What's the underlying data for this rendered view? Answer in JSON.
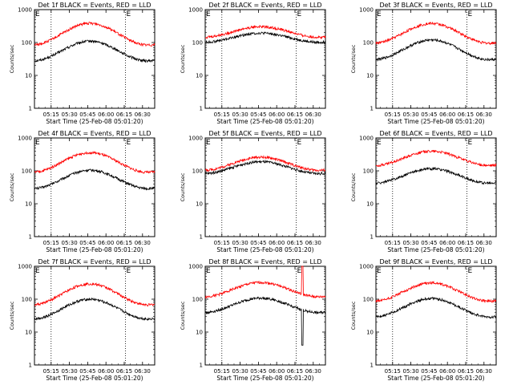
{
  "chart_data": [
    {
      "type": "line",
      "title": "Det 1f BLACK = Events, RED = LLD",
      "xlabel": "Start Time (25-Feb-08 05:01:20)",
      "ylabel": "Counts/sec",
      "yscale": "log",
      "ylim": [
        1,
        1000
      ],
      "ytick_labels": [
        "1",
        "10",
        "100",
        "1000"
      ],
      "xtick_labels": [
        "05:15",
        "05:30",
        "05:45",
        "06:00",
        "06:15",
        "06:30"
      ],
      "vlines": [
        "05:15",
        "06:16"
      ],
      "corner_marks": [
        "E",
        "E"
      ],
      "series": [
        {
          "color": "#000000",
          "base": 55,
          "swing": 0.3
        },
        {
          "color": "#ff0000",
          "base": 180,
          "swing": 0.33
        }
      ]
    },
    {
      "type": "line",
      "title": "Det 2f BLACK = Events, RED = LLD",
      "xlabel": "Start Time (25-Feb-08 05:01:20)",
      "ylabel": "Counts/sec",
      "yscale": "log",
      "ylim": [
        1,
        1000
      ],
      "ytick_labels": [
        "1",
        "10",
        "100",
        "1000"
      ],
      "xtick_labels": [
        "05:15",
        "05:30",
        "05:45",
        "06:00",
        "06:15",
        "06:30"
      ],
      "vlines": [
        "05:15",
        "06:16"
      ],
      "corner_marks": [
        "E",
        "E"
      ],
      "series": [
        {
          "color": "#000000",
          "base": 140,
          "swing": 0.14
        },
        {
          "color": "#ff0000",
          "base": 210,
          "swing": 0.16
        }
      ]
    },
    {
      "type": "line",
      "title": "Det 3f BLACK = Events, RED = LLD",
      "xlabel": "Start Time (25-Feb-08 05:01:20)",
      "ylabel": "Counts/sec",
      "yscale": "log",
      "ylim": [
        1,
        1000
      ],
      "ytick_labels": [
        "1",
        "10",
        "100",
        "1000"
      ],
      "xtick_labels": [
        "05:15",
        "05:30",
        "05:45",
        "06:00",
        "06:15",
        "06:30"
      ],
      "vlines": [
        "05:15",
        "06:16"
      ],
      "corner_marks": [
        "E",
        "E"
      ],
      "series": [
        {
          "color": "#000000",
          "base": 60,
          "swing": 0.3
        },
        {
          "color": "#ff0000",
          "base": 190,
          "swing": 0.3
        }
      ]
    },
    {
      "type": "line",
      "title": "Det 4f BLACK = Events, RED = LLD",
      "xlabel": "Start Time (25-Feb-08 05:01:20)",
      "ylabel": "Counts/sec",
      "yscale": "log",
      "ylim": [
        1,
        1000
      ],
      "ytick_labels": [
        "1",
        "10",
        "100",
        "1000"
      ],
      "xtick_labels": [
        "05:15",
        "05:30",
        "05:45",
        "06:00",
        "06:15",
        "06:30"
      ],
      "vlines": [
        "05:15",
        "06:16"
      ],
      "corner_marks": [
        "E",
        "E"
      ],
      "series": [
        {
          "color": "#000000",
          "base": 55,
          "swing": 0.28
        },
        {
          "color": "#ff0000",
          "base": 180,
          "swing": 0.3
        }
      ]
    },
    {
      "type": "line",
      "title": "Det 5f BLACK = Events, RED = LLD",
      "xlabel": "Start Time (25-Feb-08 05:01:20)",
      "ylabel": "Counts/sec",
      "yscale": "log",
      "ylim": [
        1,
        1000
      ],
      "ytick_labels": [
        "1",
        "10",
        "100",
        "1000"
      ],
      "xtick_labels": [
        "05:15",
        "05:30",
        "05:45",
        "06:00",
        "06:15",
        "06:30"
      ],
      "vlines": [
        "05:15",
        "06:16"
      ],
      "corner_marks": [
        "E",
        "E"
      ],
      "series": [
        {
          "color": "#000000",
          "base": 125,
          "swing": 0.18
        },
        {
          "color": "#ff0000",
          "base": 165,
          "swing": 0.2
        }
      ]
    },
    {
      "type": "line",
      "title": "Det 6f BLACK = Events, RED = LLD",
      "xlabel": "Start Time (25-Feb-08 05:01:20)",
      "ylabel": "Counts/sec",
      "yscale": "log",
      "ylim": [
        1,
        1000
      ],
      "ytick_labels": [
        "1",
        "10",
        "100",
        "1000"
      ],
      "xtick_labels": [
        "05:15",
        "05:30",
        "05:45",
        "06:00",
        "06:15",
        "06:30"
      ],
      "vlines": [
        "05:15",
        "06:16"
      ],
      "corner_marks": [
        "E",
        "E"
      ],
      "series": [
        {
          "color": "#000000",
          "base": 70,
          "swing": 0.22
        },
        {
          "color": "#ff0000",
          "base": 240,
          "swing": 0.22
        }
      ]
    },
    {
      "type": "line",
      "title": "Det 7f BLACK = Events, RED = LLD",
      "xlabel": "Start Time (25-Feb-08 05:01:20)",
      "ylabel": "Counts/sec",
      "yscale": "log",
      "ylim": [
        1,
        1000
      ],
      "ytick_labels": [
        "1",
        "10",
        "100",
        "1000"
      ],
      "xtick_labels": [
        "05:15",
        "05:30",
        "05:45",
        "06:00",
        "06:15",
        "06:30"
      ],
      "vlines": [
        "05:15",
        "06:16"
      ],
      "corner_marks": [
        "E",
        "E"
      ],
      "series": [
        {
          "color": "#000000",
          "base": 50,
          "swing": 0.3
        },
        {
          "color": "#ff0000",
          "base": 140,
          "swing": 0.32
        }
      ]
    },
    {
      "type": "line",
      "title": "Det 8f BLACK = Events, RED = LLD",
      "xlabel": "Start Time (25-Feb-08 05:01:20)",
      "ylabel": "Counts/sec",
      "yscale": "log",
      "ylim": [
        1,
        1000
      ],
      "ytick_labels": [
        "1",
        "10",
        "100",
        "1000"
      ],
      "xtick_labels": [
        "05:15",
        "05:30",
        "05:45",
        "06:00",
        "06:15",
        "06:30"
      ],
      "vlines": [
        "05:15",
        "06:16"
      ],
      "corner_marks": [
        "E",
        "E"
      ],
      "spike": {
        "black_min": 4,
        "red_max": 1000
      },
      "series": [
        {
          "color": "#000000",
          "base": 65,
          "swing": 0.22
        },
        {
          "color": "#ff0000",
          "base": 195,
          "swing": 0.22
        }
      ]
    },
    {
      "type": "line",
      "title": "Det 9f BLACK = Events, RED = LLD",
      "xlabel": "Start Time (25-Feb-08 05:01:20)",
      "ylabel": "Counts/sec",
      "yscale": "log",
      "ylim": [
        1,
        1000
      ],
      "ytick_labels": [
        "1",
        "10",
        "100",
        "1000"
      ],
      "xtick_labels": [
        "05:15",
        "05:30",
        "05:45",
        "06:00",
        "06:15",
        "06:30"
      ],
      "vlines": [
        "05:15",
        "06:16"
      ],
      "corner_marks": [
        "E",
        "E"
      ],
      "series": [
        {
          "color": "#000000",
          "base": 55,
          "swing": 0.28
        },
        {
          "color": "#ff0000",
          "base": 165,
          "swing": 0.28
        }
      ]
    }
  ]
}
